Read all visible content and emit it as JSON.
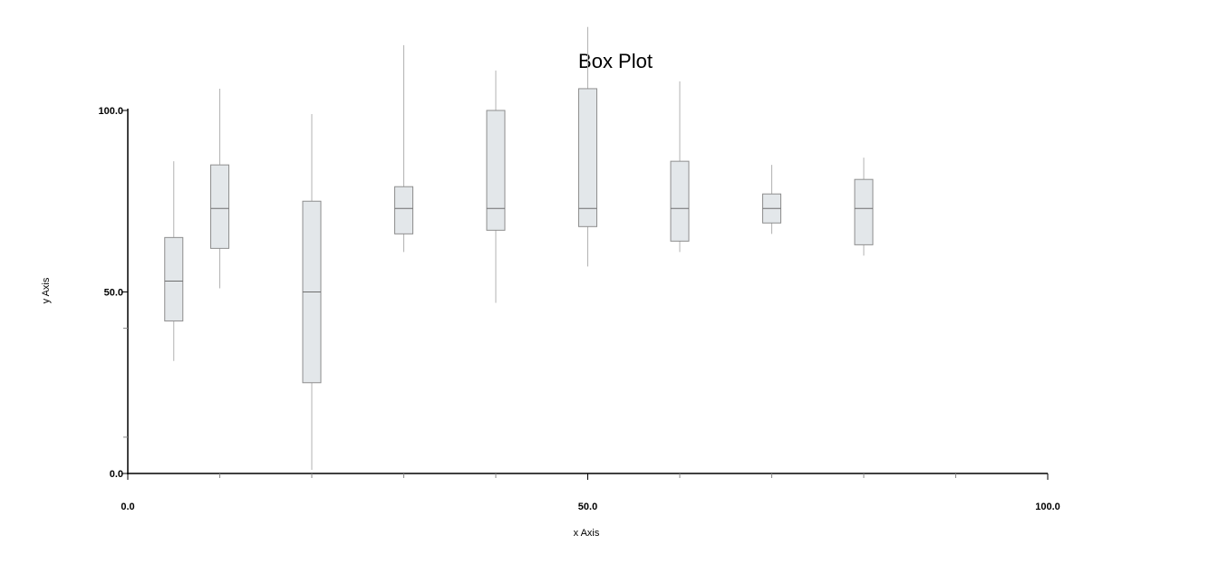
{
  "chart_data": {
    "type": "box",
    "title": "Box Plot",
    "xlabel": "x Axis",
    "ylabel": "y Axis",
    "xlim": [
      0,
      100
    ],
    "ylim": [
      0,
      100
    ],
    "x_tick_labels": [
      "0.0",
      "50.0",
      "100.0"
    ],
    "y_tick_labels": [
      "0.0",
      "50.0",
      "100.0"
    ],
    "x_minor_ticks": [
      10,
      20,
      30,
      40,
      60,
      70,
      80,
      90
    ],
    "y_minor_ticks": [
      10,
      40
    ],
    "grid": false,
    "colors": {
      "box_fill": "#e3e7ea",
      "box_stroke": "#8e8e8e",
      "median": "#6e6e6e",
      "whisker": "#b3b3b3",
      "axis": "#000000"
    },
    "boxes": [
      {
        "x": 5,
        "min": 31,
        "q1": 42,
        "median": 53,
        "q3": 65,
        "max": 86
      },
      {
        "x": 10,
        "min": 51,
        "q1": 62,
        "median": 73,
        "q3": 85,
        "max": 106
      },
      {
        "x": 20,
        "min": 1,
        "q1": 25,
        "median": 50,
        "q3": 75,
        "max": 99
      },
      {
        "x": 30,
        "min": 61,
        "q1": 66,
        "median": 73,
        "q3": 79,
        "max": 118
      },
      {
        "x": 40,
        "min": 47,
        "q1": 67,
        "median": 73,
        "q3": 100,
        "max": 111
      },
      {
        "x": 50,
        "min": 57,
        "q1": 68,
        "median": 73,
        "q3": 106,
        "max": 123
      },
      {
        "x": 60,
        "min": 61,
        "q1": 64,
        "median": 73,
        "q3": 86,
        "max": 108
      },
      {
        "x": 70,
        "min": 66,
        "q1": 69,
        "median": 73,
        "q3": 77,
        "max": 85
      },
      {
        "x": 80,
        "min": 60,
        "q1": 63,
        "median": 73,
        "q3": 81,
        "max": 87
      }
    ]
  }
}
